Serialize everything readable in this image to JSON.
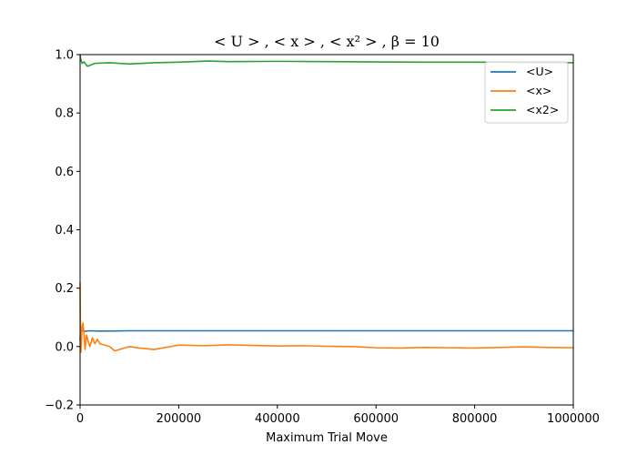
{
  "chart_data": {
    "type": "line",
    "title": "< U > , < x > , < x² > , β = 10",
    "xlabel": "Maximum Trial Move",
    "ylabel": "",
    "xlim": [
      0,
      1000000
    ],
    "ylim": [
      -0.2,
      1.0
    ],
    "xticks": [
      0,
      200000,
      400000,
      600000,
      800000,
      1000000
    ],
    "xtick_labels": [
      "0",
      "200000",
      "400000",
      "600000",
      "800000",
      "1000000"
    ],
    "yticks": [
      -0.2,
      0.0,
      0.2,
      0.4,
      0.6,
      0.8,
      1.0
    ],
    "ytick_labels": [
      "−0.2",
      "0.0",
      "0.2",
      "0.4",
      "0.6",
      "0.8",
      "1.0"
    ],
    "grid": false,
    "legend_position": "top-right",
    "series": [
      {
        "name": "<U>",
        "color": "#1f77b4",
        "x": [
          0,
          1000,
          3000,
          5000,
          8000,
          12000,
          20000,
          40000,
          100000,
          300000,
          600000,
          1000000
        ],
        "y": [
          0.02,
          0.06,
          0.05,
          0.055,
          0.052,
          0.053,
          0.054,
          0.053,
          0.054,
          0.054,
          0.054,
          0.054
        ]
      },
      {
        "name": "<x>",
        "color": "#ff7f0e",
        "x": [
          0,
          500,
          1500,
          2500,
          4000,
          6000,
          8000,
          10000,
          13000,
          16000,
          20000,
          25000,
          30000,
          35000,
          40000,
          50000,
          60000,
          70000,
          80000,
          100000,
          120000,
          150000,
          200000,
          250000,
          300000,
          350000,
          400000,
          450000,
          500000,
          550000,
          600000,
          650000,
          700000,
          750000,
          800000,
          850000,
          900000,
          950000,
          1000000
        ],
        "y": [
          0.22,
          0.1,
          -0.02,
          0.0,
          0.07,
          0.08,
          0.04,
          -0.01,
          0.04,
          0.02,
          0.0,
          0.03,
          0.01,
          0.025,
          0.01,
          0.005,
          0.0,
          -0.015,
          -0.01,
          0.0,
          -0.005,
          -0.01,
          0.005,
          0.003,
          0.006,
          0.004,
          0.002,
          0.003,
          0.001,
          0.0,
          -0.004,
          -0.005,
          -0.003,
          -0.004,
          -0.005,
          -0.003,
          -0.001,
          -0.003,
          -0.004
        ]
      },
      {
        "name": "<x2>",
        "color": "#2ca02c",
        "x": [
          0,
          800,
          2000,
          4000,
          8000,
          15000,
          30000,
          60000,
          100000,
          150000,
          200000,
          260000,
          300000,
          400000,
          500000,
          600000,
          700000,
          800000,
          900000,
          1000000
        ],
        "y": [
          1.0,
          0.99,
          0.98,
          0.97,
          0.975,
          0.96,
          0.97,
          0.972,
          0.968,
          0.972,
          0.974,
          0.978,
          0.976,
          0.977,
          0.976,
          0.975,
          0.974,
          0.974,
          0.973,
          0.972
        ]
      }
    ]
  }
}
